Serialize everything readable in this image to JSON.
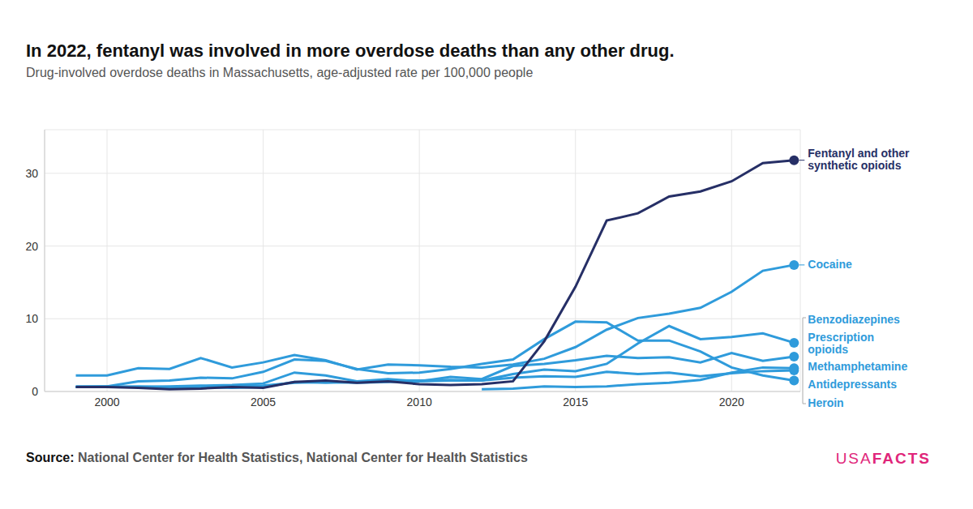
{
  "chart_data": {
    "type": "line",
    "title": "In 2022, fentanyl was involved in more overdose deaths than any other drug.",
    "subtitle": "Drug-involved overdose deaths in Massachusetts, age-adjusted rate per 100,000 people",
    "source_label": "Source:",
    "source": "National Center for Health Statistics, National Center for Health Statistics",
    "logo": {
      "light": "USA",
      "bold": "FACTS"
    },
    "x": [
      1999,
      2000,
      2001,
      2002,
      2003,
      2004,
      2005,
      2006,
      2007,
      2008,
      2009,
      2010,
      2011,
      2012,
      2013,
      2014,
      2015,
      2016,
      2017,
      2018,
      2019,
      2020,
      2021,
      2022
    ],
    "xlim": [
      1998,
      2022.2
    ],
    "xticks": [
      2000,
      2005,
      2010,
      2015,
      2020
    ],
    "ylim": [
      0,
      36
    ],
    "yticks": [
      0,
      10,
      20,
      30
    ],
    "grid": true,
    "series": [
      {
        "name": "Fentanyl and other synthetic opioids",
        "color": "#262f66",
        "values": [
          0.6,
          0.6,
          0.5,
          0.3,
          0.4,
          0.6,
          0.5,
          1.3,
          1.5,
          1.2,
          1.4,
          1.0,
          0.9,
          1.0,
          1.4,
          6.9,
          14.4,
          23.5,
          24.5,
          26.8,
          27.5,
          28.9,
          31.4,
          31.8
        ]
      },
      {
        "name": "Cocaine",
        "color": "#2f9bdb",
        "values": [
          2.2,
          2.2,
          3.2,
          3.1,
          4.6,
          3.3,
          4.0,
          5.0,
          4.3,
          3.0,
          3.7,
          3.6,
          3.4,
          3.3,
          3.7,
          4.5,
          6.1,
          8.5,
          10.1,
          10.7,
          11.5,
          13.7,
          16.6,
          17.4
        ]
      },
      {
        "name": "Benzodiazepines",
        "color": "#2f9bdb",
        "values": [
          0.6,
          0.6,
          0.6,
          0.6,
          0.6,
          0.5,
          0.6,
          1.3,
          1.2,
          1.3,
          1.5,
          1.5,
          1.6,
          1.5,
          2.4,
          3.0,
          2.8,
          3.8,
          6.6,
          9.0,
          7.2,
          7.5,
          8.0,
          6.7
        ]
      },
      {
        "name": "Prescription opioids",
        "color": "#2f9bdb",
        "values": [
          0.6,
          0.7,
          0.6,
          0.7,
          0.8,
          0.9,
          1.1,
          2.6,
          2.2,
          1.4,
          1.7,
          1.4,
          2.0,
          1.7,
          3.5,
          3.8,
          4.3,
          4.9,
          4.6,
          4.7,
          4.0,
          5.3,
          4.2,
          4.8
        ]
      },
      {
        "name": "Methamphetamine",
        "color": "#2f9bdb",
        "values": [
          null,
          null,
          null,
          null,
          null,
          null,
          null,
          null,
          null,
          null,
          null,
          null,
          null,
          0.3,
          0.4,
          0.7,
          0.6,
          0.7,
          1.0,
          1.2,
          1.6,
          2.6,
          3.3,
          3.2
        ]
      },
      {
        "name": "Antidepressants",
        "color": "#2f9bdb",
        "values": [
          0.6,
          0.6,
          0.7,
          0.6,
          0.7,
          0.7,
          0.8,
          1.2,
          1.3,
          1.2,
          1.3,
          1.4,
          1.5,
          1.5,
          1.9,
          2.1,
          2.0,
          2.7,
          2.4,
          2.6,
          2.1,
          2.5,
          2.8,
          2.9
        ]
      },
      {
        "name": "Heroin",
        "color": "#2f9bdb",
        "values": [
          0.7,
          0.7,
          1.4,
          1.5,
          1.9,
          1.8,
          2.7,
          4.4,
          4.2,
          3.1,
          2.5,
          2.6,
          3.1,
          3.8,
          4.4,
          7.2,
          9.6,
          9.5,
          7.0,
          7.0,
          5.5,
          3.3,
          2.2,
          1.5
        ]
      }
    ]
  }
}
